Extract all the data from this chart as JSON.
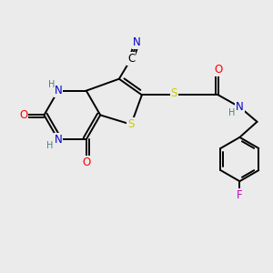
{
  "background_color": "#ebebeb",
  "figsize": [
    3.0,
    3.0
  ],
  "dpi": 100,
  "colors": {
    "C": "#000000",
    "N": "#0000cc",
    "O": "#ff0000",
    "S": "#cccc00",
    "F": "#cc00cc",
    "H": "#4a8080",
    "bond": "#000000"
  }
}
